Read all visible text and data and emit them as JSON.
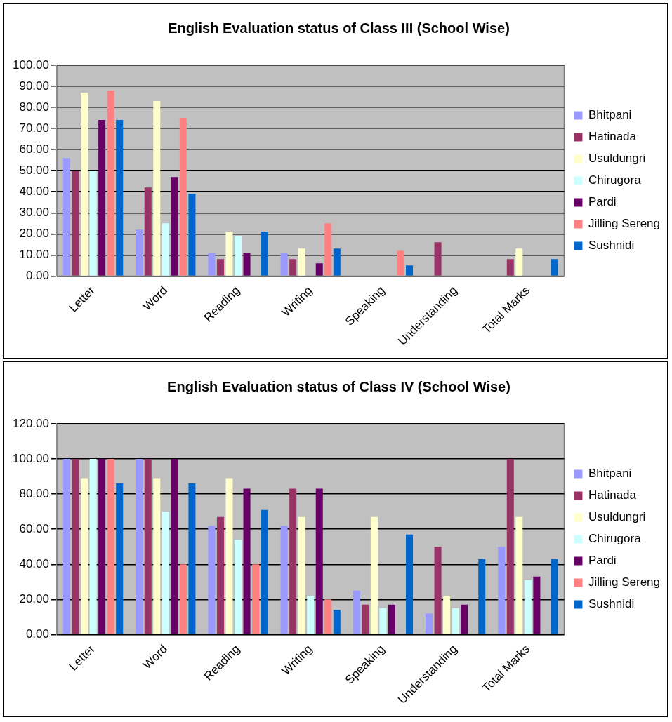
{
  "chart_data": [
    {
      "type": "bar",
      "title": "English Evaluation status of Class III (School Wise)",
      "categories": [
        "Letter",
        "Word",
        "Reading",
        "Writing",
        "Speaking",
        "Understanding",
        "Total Marks"
      ],
      "series": [
        {
          "name": "Bhitpani",
          "color": "#9999ff",
          "values": [
            56,
            22,
            11,
            11,
            0,
            0,
            0
          ]
        },
        {
          "name": "Hatinada",
          "color": "#993366",
          "values": [
            50,
            42,
            8,
            8,
            0,
            16,
            8
          ]
        },
        {
          "name": "Usuldungri",
          "color": "#ffffcc",
          "values": [
            87,
            83,
            21,
            13,
            0,
            0,
            13
          ]
        },
        {
          "name": "Chirugora",
          "color": "#ccffff",
          "values": [
            50,
            25,
            19,
            0,
            0,
            0,
            0
          ]
        },
        {
          "name": "Pardi",
          "color": "#660066",
          "values": [
            74,
            47,
            11,
            6,
            0,
            0,
            0
          ]
        },
        {
          "name": "Jilling Sereng",
          "color": "#ff8080",
          "values": [
            88,
            75,
            0,
            25,
            12,
            0,
            0
          ]
        },
        {
          "name": "Sushnidi",
          "color": "#0066cc",
          "values": [
            74,
            39,
            21,
            13,
            5,
            0,
            8
          ]
        }
      ],
      "ylim": [
        0,
        100
      ],
      "yticks": [
        {
          "value": 0,
          "label": "0.00"
        },
        {
          "value": 10,
          "label": "10.00"
        },
        {
          "value": 20,
          "label": "20.00"
        },
        {
          "value": 30,
          "label": "30.00"
        },
        {
          "value": 40,
          "label": "40.00"
        },
        {
          "value": 50,
          "label": "50.00"
        },
        {
          "value": 60,
          "label": "60.00"
        },
        {
          "value": 70,
          "label": "70.00"
        },
        {
          "value": 80,
          "label": "80.00"
        },
        {
          "value": 90,
          "label": "90.00"
        },
        {
          "value": 100,
          "label": "100.00"
        }
      ],
      "grid": "y",
      "legend": "right"
    },
    {
      "type": "bar",
      "title": "English Evaluation status of Class IV (School Wise)",
      "categories": [
        "Letter",
        "Word",
        "Reading",
        "Writing",
        "Speaking",
        "Understanding",
        "Total Marks"
      ],
      "series": [
        {
          "name": "Bhitpani",
          "color": "#9999ff",
          "values": [
            100,
            100,
            62,
            62,
            25,
            12,
            50
          ]
        },
        {
          "name": "Hatinada",
          "color": "#993366",
          "values": [
            100,
            100,
            67,
            83,
            17,
            50,
            100
          ]
        },
        {
          "name": "Usuldungri",
          "color": "#ffffcc",
          "values": [
            89,
            89,
            89,
            67,
            67,
            22,
            67
          ]
        },
        {
          "name": "Chirugora",
          "color": "#ccffff",
          "values": [
            100,
            70,
            54,
            22,
            15,
            15,
            31
          ]
        },
        {
          "name": "Pardi",
          "color": "#660066",
          "values": [
            100,
            100,
            83,
            83,
            17,
            17,
            33
          ]
        },
        {
          "name": "Jilling Sereng",
          "color": "#ff8080",
          "values": [
            100,
            40,
            40,
            20,
            0,
            0,
            0
          ]
        },
        {
          "name": "Sushnidi",
          "color": "#0066cc",
          "values": [
            86,
            86,
            71,
            14,
            57,
            43,
            43
          ]
        }
      ],
      "ylim": [
        0,
        120
      ],
      "yticks": [
        {
          "value": 0,
          "label": "0.00"
        },
        {
          "value": 20,
          "label": "20.00"
        },
        {
          "value": 40,
          "label": "40.00"
        },
        {
          "value": 60,
          "label": "60.00"
        },
        {
          "value": 80,
          "label": "80.00"
        },
        {
          "value": 100,
          "label": "100.00"
        },
        {
          "value": 120,
          "label": "120.00"
        }
      ],
      "grid": "y",
      "legend": "right"
    }
  ]
}
